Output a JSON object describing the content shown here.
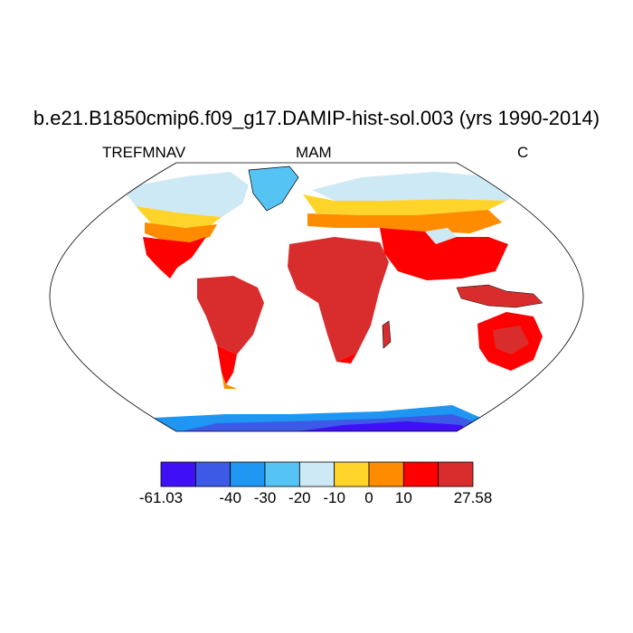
{
  "title": "b.e21.B1850cmip6.f09_g17.DAMIP-hist-sol.003 (yrs 1990-2014)",
  "left_label": "TREFMNAV",
  "center_label": "MAM",
  "right_label": "C",
  "projection": "Robinson",
  "colorbar": {
    "colors": [
      "#3f10f5",
      "#3d5ae6",
      "#1e96f2",
      "#55c4f5",
      "#cde9f5",
      "#ffd42a",
      "#ff8c00",
      "#ff0000",
      "#d92c2c"
    ],
    "tick_labels": [
      "-61.03",
      "-40",
      "-30",
      "-20",
      "-10",
      "0",
      "10",
      "27.58"
    ]
  },
  "colors": {
    "land_outline": "#000000",
    "ocean": "#ffffff"
  }
}
